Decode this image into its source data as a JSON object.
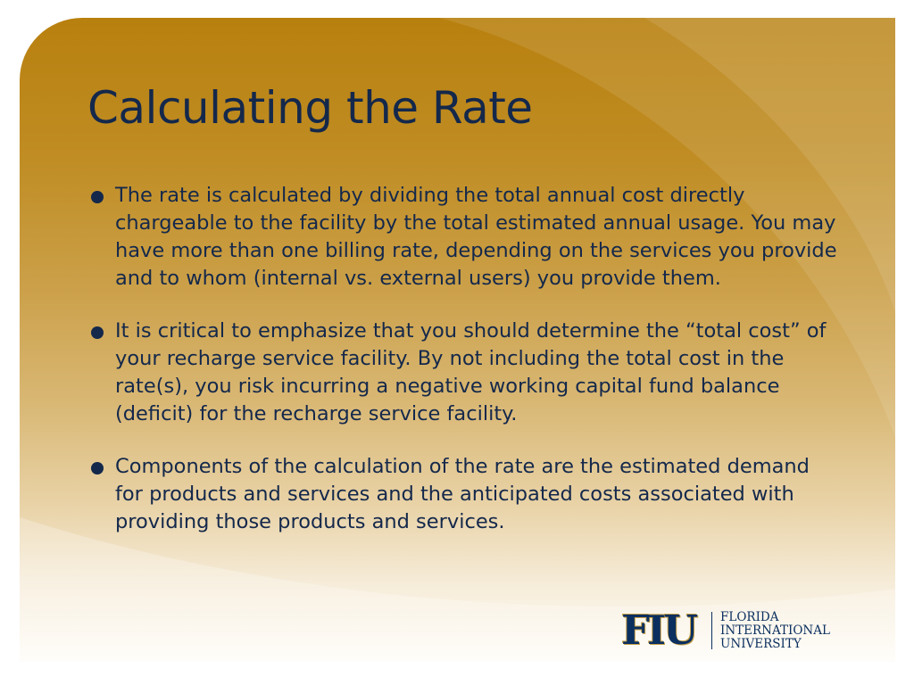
{
  "slide": {
    "title": "Calculating the Rate",
    "bullets": [
      "The rate is calculated by dividing the total annual cost directly chargeable to the facility by the total estimated annual usage. You may have more than one billing rate, depending on the services you provide and to whom (internal vs. external users) you provide them.",
      "It is critical to emphasize that you should determine the “total cost” of your recharge service facility. By not including the total cost in the rate(s), you risk incurring a negative working capital fund balance (deficit) for the recharge service facility.",
      "Components of the calculation of the rate are the estimated demand for products and services and the anticipated costs associated with providing those products and services."
    ]
  },
  "logo": {
    "monogram": "FIU",
    "name_lines": [
      "FLORIDA",
      "INTERNATIONAL",
      "UNIVERSITY"
    ]
  },
  "colors": {
    "title_text": "#14284b",
    "body_text": "#14284b",
    "background_top": "#b8800e",
    "background_bottom": "#fffdf8",
    "logo_blue": "#0b2f5f",
    "logo_gold": "#c8a24a"
  }
}
